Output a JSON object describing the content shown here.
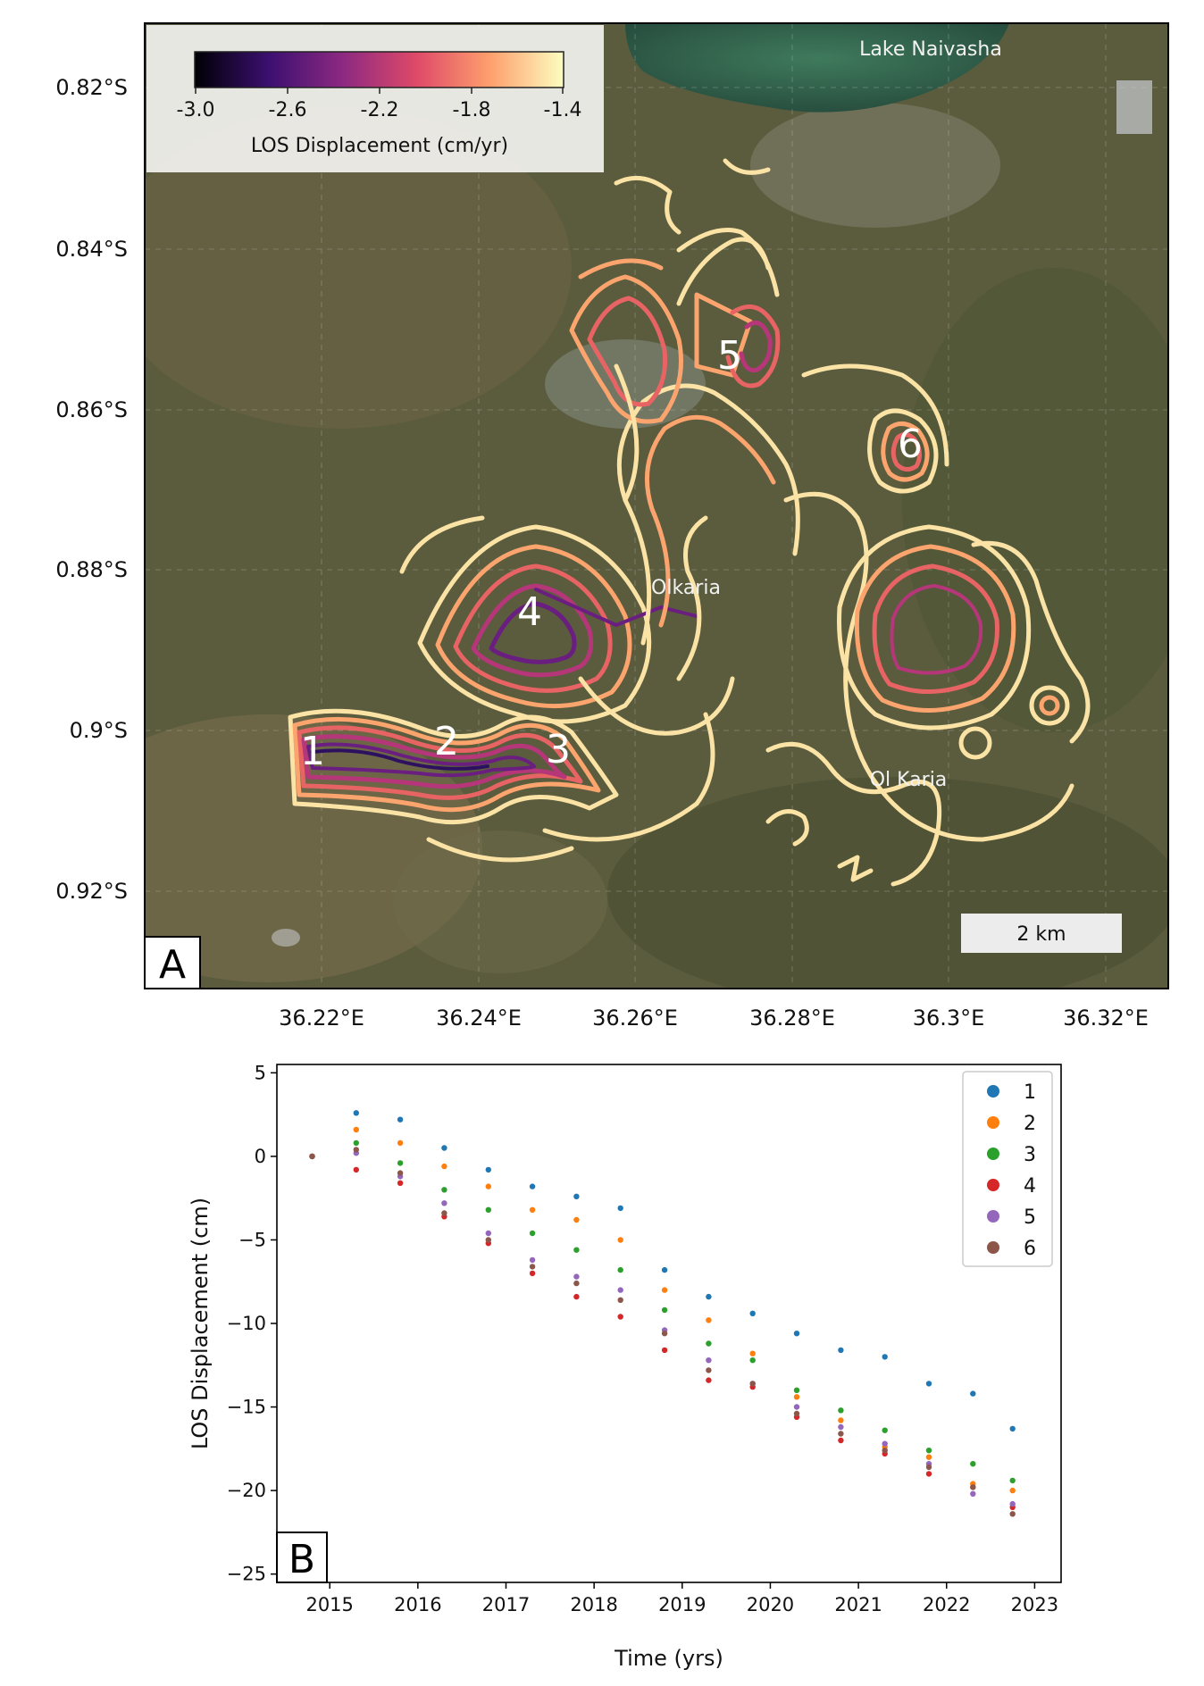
{
  "panel_a": {
    "panel_label": "A",
    "map": {
      "lat_ticks": [
        "0.82°S",
        "0.84°S",
        "0.86°S",
        "0.88°S",
        "0.9°S",
        "0.92°S"
      ],
      "lon_ticks": [
        "36.22°E",
        "36.24°E",
        "36.26°E",
        "36.28°E",
        "36.3°E",
        "36.32°E"
      ],
      "place_labels": [
        "Lake Naivasha",
        "Olkaria",
        "Ol Karia"
      ],
      "scalebar_label": "2 km",
      "site_labels": [
        "1",
        "2",
        "3",
        "4",
        "5",
        "6"
      ]
    },
    "colorbar": {
      "label": "LOS Displacement (cm/yr)",
      "ticks": [
        "-3.0",
        "-2.6",
        "-2.2",
        "-1.8",
        "-1.4"
      ],
      "range": [
        -3.0,
        -1.4
      ],
      "colormap": "magma",
      "colors": [
        "#000004",
        "#3b0f70",
        "#8c2981",
        "#de4968",
        "#fe9f6d",
        "#fcfdbf"
      ]
    },
    "colors": {
      "satellite_base": "#5a5b3c",
      "lake": "#2f5d48"
    }
  },
  "chart_data": {
    "type": "scatter",
    "panel_label": "B",
    "xlabel": "Time (yrs)",
    "ylabel": "LOS Displacement (cm)",
    "xlim": [
      2014.4,
      2023.3
    ],
    "ylim": [
      -25.5,
      5.5
    ],
    "x_ticks": [
      2015,
      2016,
      2017,
      2018,
      2019,
      2020,
      2021,
      2022,
      2023
    ],
    "y_ticks": [
      5,
      0,
      -5,
      -10,
      -15,
      -20,
      -25
    ],
    "y_tick_labels": [
      "5",
      "0",
      "−5",
      "−10",
      "−15",
      "−20",
      "−25"
    ],
    "legend_position": "top-right",
    "series": [
      {
        "name": "1",
        "color": "#1f77b4",
        "x": [
          2014.8,
          2015.3,
          2015.8,
          2016.3,
          2016.8,
          2017.3,
          2017.8,
          2018.3,
          2018.8,
          2019.3,
          2019.8,
          2020.3,
          2020.8,
          2021.3,
          2021.8,
          2022.3,
          2022.75
        ],
        "y": [
          0,
          2.6,
          2.2,
          0.5,
          -0.8,
          -1.8,
          -2.4,
          -3.1,
          -6.8,
          -8.4,
          -9.4,
          -10.6,
          -11.6,
          -12.0,
          -13.6,
          -14.2,
          -16.3
        ]
      },
      {
        "name": "2",
        "color": "#ff7f0e",
        "x": [
          2014.8,
          2015.3,
          2015.8,
          2016.3,
          2016.8,
          2017.3,
          2017.8,
          2018.3,
          2018.8,
          2019.3,
          2019.8,
          2020.3,
          2020.8,
          2021.3,
          2021.8,
          2022.3,
          2022.75
        ],
        "y": [
          0,
          1.6,
          0.8,
          -0.6,
          -1.8,
          -3.2,
          -3.8,
          -5.0,
          -8.0,
          -9.8,
          -11.8,
          -14.4,
          -15.8,
          -17.4,
          -18.0,
          -19.6,
          -20.0
        ]
      },
      {
        "name": "3",
        "color": "#2ca02c",
        "x": [
          2014.8,
          2015.3,
          2015.8,
          2016.3,
          2016.8,
          2017.3,
          2017.8,
          2018.3,
          2018.8,
          2019.3,
          2019.8,
          2020.3,
          2020.8,
          2021.3,
          2021.8,
          2022.3,
          2022.75
        ],
        "y": [
          0,
          0.8,
          -0.4,
          -2.0,
          -3.2,
          -4.6,
          -5.6,
          -6.8,
          -9.2,
          -11.2,
          -12.2,
          -14.0,
          -15.2,
          -16.4,
          -17.6,
          -18.4,
          -19.4
        ]
      },
      {
        "name": "4",
        "color": "#d62728",
        "x": [
          2014.8,
          2015.3,
          2015.8,
          2016.3,
          2016.8,
          2017.3,
          2017.8,
          2018.3,
          2018.8,
          2019.3,
          2019.8,
          2020.3,
          2020.8,
          2021.3,
          2021.8,
          2022.3,
          2022.75
        ],
        "y": [
          0,
          -0.8,
          -1.6,
          -3.6,
          -5.2,
          -7.0,
          -8.4,
          -9.6,
          -11.6,
          -13.4,
          -13.8,
          -15.6,
          -17.0,
          -17.8,
          -19.0,
          -19.8,
          -21.0
        ]
      },
      {
        "name": "5",
        "color": "#9467bd",
        "x": [
          2014.8,
          2015.3,
          2015.8,
          2016.3,
          2016.8,
          2017.3,
          2017.8,
          2018.3,
          2018.8,
          2019.3,
          2019.8,
          2020.3,
          2020.8,
          2021.3,
          2021.8,
          2022.3,
          2022.75
        ],
        "y": [
          0,
          0.2,
          -1.2,
          -2.8,
          -4.6,
          -6.2,
          -7.2,
          -8.0,
          -10.4,
          -12.2,
          -13.6,
          -15.0,
          -16.2,
          -17.2,
          -18.4,
          -20.2,
          -20.8
        ]
      },
      {
        "name": "6",
        "color": "#8c564b",
        "x": [
          2014.8,
          2015.3,
          2015.8,
          2016.3,
          2016.8,
          2017.3,
          2017.8,
          2018.3,
          2018.8,
          2019.3,
          2019.8,
          2020.3,
          2020.8,
          2021.3,
          2021.8,
          2022.3,
          2022.75
        ],
        "y": [
          0,
          0.4,
          -1.0,
          -3.4,
          -5.0,
          -6.6,
          -7.6,
          -8.6,
          -10.6,
          -12.8,
          -13.6,
          -15.4,
          -16.6,
          -17.6,
          -18.6,
          -19.8,
          -21.4
        ]
      }
    ]
  }
}
